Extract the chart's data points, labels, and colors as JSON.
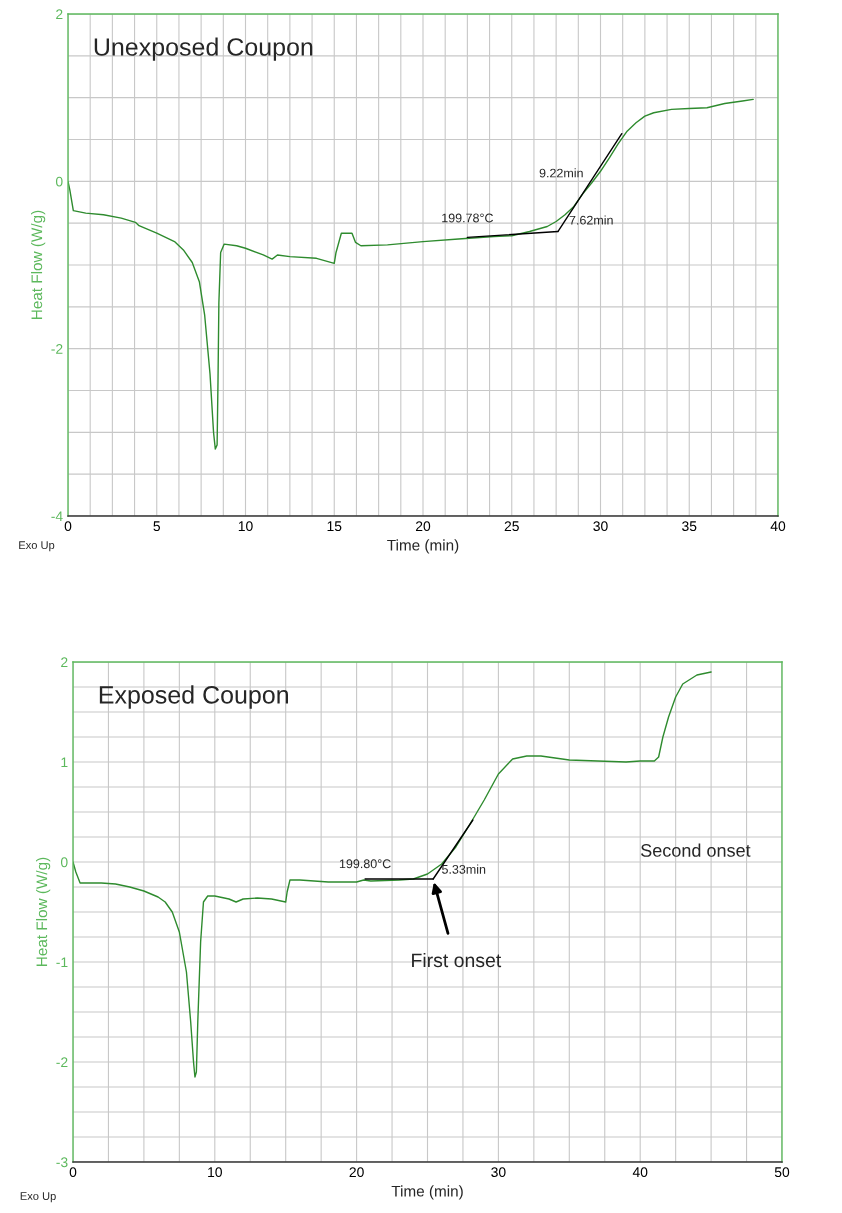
{
  "chart_data": [
    {
      "type": "line",
      "title": "Unexposed Coupon",
      "xlabel": "Time (min)",
      "ylabel": "Heat Flow (W/g)",
      "xlim": [
        0,
        40
      ],
      "ylim": [
        -4,
        2
      ],
      "xticks": [
        0,
        {
          "value": 1.25,
          "label": null
        },
        {
          "value": 2.5,
          "label": null
        },
        {
          "value": 3.75,
          "label": null
        },
        5,
        {
          "value": 6.25,
          "label": null
        },
        {
          "value": 7.5,
          "label": null
        },
        {
          "value": 8.75,
          "label": null
        },
        10,
        {
          "value": 11.25,
          "label": null
        },
        {
          "value": 12.5,
          "label": null
        },
        {
          "value": 13.75,
          "label": null
        },
        15,
        {
          "value": 16.25,
          "label": null
        },
        {
          "value": 17.5,
          "label": null
        },
        {
          "value": 18.75,
          "label": null
        },
        20,
        {
          "value": 21.25,
          "label": null
        },
        {
          "value": 22.5,
          "label": null
        },
        {
          "value": 23.75,
          "label": null
        },
        25,
        {
          "value": 26.25,
          "label": null
        },
        {
          "value": 27.5,
          "label": null
        },
        {
          "value": 28.75,
          "label": null
        },
        30,
        {
          "value": 31.25,
          "label": null
        },
        {
          "value": 32.5,
          "label": null
        },
        {
          "value": 33.75,
          "label": null
        },
        35,
        {
          "value": 36.25,
          "label": null
        },
        {
          "value": 37.5,
          "label": null
        },
        {
          "value": 38.75,
          "label": null
        },
        40
      ],
      "yticks": [
        -4,
        {
          "value": -3.5,
          "label": null
        },
        {
          "value": -3,
          "label": null
        },
        {
          "value": -2.5,
          "label": null
        },
        -2,
        {
          "value": -1.5,
          "label": null
        },
        {
          "value": -1,
          "label": null
        },
        {
          "value": -0.5,
          "label": null
        },
        0,
        {
          "value": 0.5,
          "label": null
        },
        {
          "value": 1,
          "label": null
        },
        {
          "value": 1.5,
          "label": null
        },
        2
      ],
      "grid": true,
      "series": [
        {
          "color": "#2e8b2e",
          "x": [
            0,
            0.1,
            0.3,
            1,
            2,
            3,
            3.8,
            4,
            5,
            6,
            6.5,
            7,
            7.4,
            7.7,
            8,
            8.2,
            8.3,
            8.4,
            8.45,
            8.5,
            8.6,
            8.8,
            9.5,
            10,
            11,
            11.5,
            11.8,
            12.5,
            14,
            15,
            15.1,
            15.4,
            16,
            16.2,
            16.5,
            18,
            20,
            22,
            24,
            25,
            26,
            27,
            27.5,
            28,
            28.5,
            29,
            29.5,
            30,
            30.5,
            31,
            31.5,
            32,
            32.5,
            33,
            34,
            35,
            36,
            37,
            38,
            38.6
          ],
          "values": [
            0,
            -0.1,
            -0.35,
            -0.38,
            -0.4,
            -0.44,
            -0.49,
            -0.53,
            -0.62,
            -0.72,
            -0.82,
            -0.97,
            -1.2,
            -1.6,
            -2.3,
            -3.0,
            -3.2,
            -3.15,
            -2.4,
            -1.45,
            -0.85,
            -0.75,
            -0.77,
            -0.8,
            -0.88,
            -0.93,
            -0.88,
            -0.9,
            -0.92,
            -0.98,
            -0.85,
            -0.62,
            -0.62,
            -0.73,
            -0.77,
            -0.76,
            -0.72,
            -0.69,
            -0.66,
            -0.65,
            -0.6,
            -0.54,
            -0.48,
            -0.4,
            -0.3,
            -0.15,
            -0.02,
            0.12,
            0.28,
            0.45,
            0.6,
            0.7,
            0.78,
            0.82,
            0.86,
            0.87,
            0.88,
            0.93,
            0.96,
            0.98
          ]
        },
        {
          "type": "line",
          "color": "#000000",
          "x": [
            22.5,
            27.6
          ],
          "values": [
            -0.67,
            -0.6
          ]
        },
        {
          "type": "line",
          "color": "#000000",
          "x": [
            27.6,
            31.2
          ],
          "values": [
            -0.6,
            0.57
          ]
        }
      ],
      "annotations": [
        {
          "text": "199.78°C",
          "x": 22.5,
          "y": -0.62
        },
        {
          "text": "9.22min",
          "x": 29.2,
          "y": -0.05
        },
        {
          "text": "7.62min",
          "x": 27.6,
          "y": -0.58
        },
        "Exo Up"
      ]
    },
    {
      "type": "line",
      "title": "Exposed Coupon",
      "xlabel": "Time (min)",
      "ylabel": "Heat Flow (W/g)",
      "xlim": [
        0,
        50
      ],
      "ylim": [
        -3,
        2
      ],
      "xticks": [
        0,
        {
          "value": 2.5,
          "label": null
        },
        {
          "value": 5,
          "label": null
        },
        {
          "value": 7.5,
          "label": null
        },
        10,
        {
          "value": 12.5,
          "label": null
        },
        {
          "value": 15,
          "label": null
        },
        {
          "value": 17.5,
          "label": null
        },
        20,
        {
          "value": 22.5,
          "label": null
        },
        {
          "value": 25,
          "label": null
        },
        {
          "value": 27.5,
          "label": null
        },
        30,
        {
          "value": 32.5,
          "label": null
        },
        {
          "value": 35,
          "label": null
        },
        {
          "value": 37.5,
          "label": null
        },
        40,
        {
          "value": 42.5,
          "label": null
        },
        {
          "value": 45,
          "label": null
        },
        {
          "value": 47.5,
          "label": null
        },
        50
      ],
      "yticks": [
        -3,
        {
          "value": -2.75,
          "label": null
        },
        {
          "value": -2.5,
          "label": null
        },
        {
          "value": -2.25,
          "label": null
        },
        -2,
        {
          "value": -1.75,
          "label": null
        },
        {
          "value": -1.5,
          "label": null
        },
        {
          "value": -1.25,
          "label": null
        },
        -1,
        {
          "value": -0.75,
          "label": null
        },
        {
          "value": -0.5,
          "label": null
        },
        {
          "value": -0.25,
          "label": null
        },
        0,
        {
          "value": 0.25,
          "label": null
        },
        {
          "value": 0.5,
          "label": null
        },
        {
          "value": 0.75,
          "label": null
        },
        1,
        {
          "value": 1.25,
          "label": null
        },
        {
          "value": 1.5,
          "label": null
        },
        {
          "value": 1.75,
          "label": null
        },
        2
      ],
      "grid": true,
      "series": [
        {
          "color": "#2e8b2e",
          "x": [
            0,
            0.2,
            0.5,
            2,
            3,
            4,
            5,
            6,
            6.5,
            7,
            7.5,
            8,
            8.3,
            8.5,
            8.6,
            8.7,
            8.8,
            9.0,
            9.2,
            9.5,
            10,
            11,
            11.5,
            12,
            13,
            14,
            15,
            15.1,
            15.3,
            16,
            18,
            20,
            20.5,
            21,
            23,
            24,
            25,
            26,
            27,
            28,
            29,
            30,
            31,
            32,
            33,
            35,
            37,
            39,
            40,
            41,
            41.3,
            41.6,
            42,
            42.5,
            43,
            44,
            45
          ],
          "values": [
            0,
            -0.1,
            -0.21,
            -0.21,
            -0.22,
            -0.25,
            -0.29,
            -0.35,
            -0.4,
            -0.5,
            -0.7,
            -1.1,
            -1.6,
            -2.0,
            -2.15,
            -2.1,
            -1.6,
            -0.8,
            -0.4,
            -0.34,
            -0.34,
            -0.37,
            -0.4,
            -0.37,
            -0.36,
            -0.37,
            -0.4,
            -0.3,
            -0.18,
            -0.18,
            -0.2,
            -0.2,
            -0.18,
            -0.19,
            -0.18,
            -0.17,
            -0.12,
            -0.02,
            0.15,
            0.38,
            0.62,
            0.88,
            1.03,
            1.06,
            1.06,
            1.02,
            1.01,
            1.0,
            1.01,
            1.01,
            1.05,
            1.25,
            1.45,
            1.65,
            1.78,
            1.87,
            1.9
          ]
        },
        {
          "type": "line",
          "color": "#000000",
          "x": [
            20.6,
            25.4
          ],
          "values": [
            -0.17,
            -0.17
          ]
        },
        {
          "type": "line",
          "color": "#000000",
          "x": [
            25.4,
            28.2
          ],
          "values": [
            -0.17,
            0.42
          ]
        }
      ],
      "annotations": [
        {
          "text": "199.80°C",
          "x": 20.6,
          "y": -0.17
        },
        {
          "text": "5.33min",
          "x": 25.4,
          "y": -0.17
        },
        "First onset",
        "Second onset",
        "Exo Up"
      ]
    }
  ]
}
